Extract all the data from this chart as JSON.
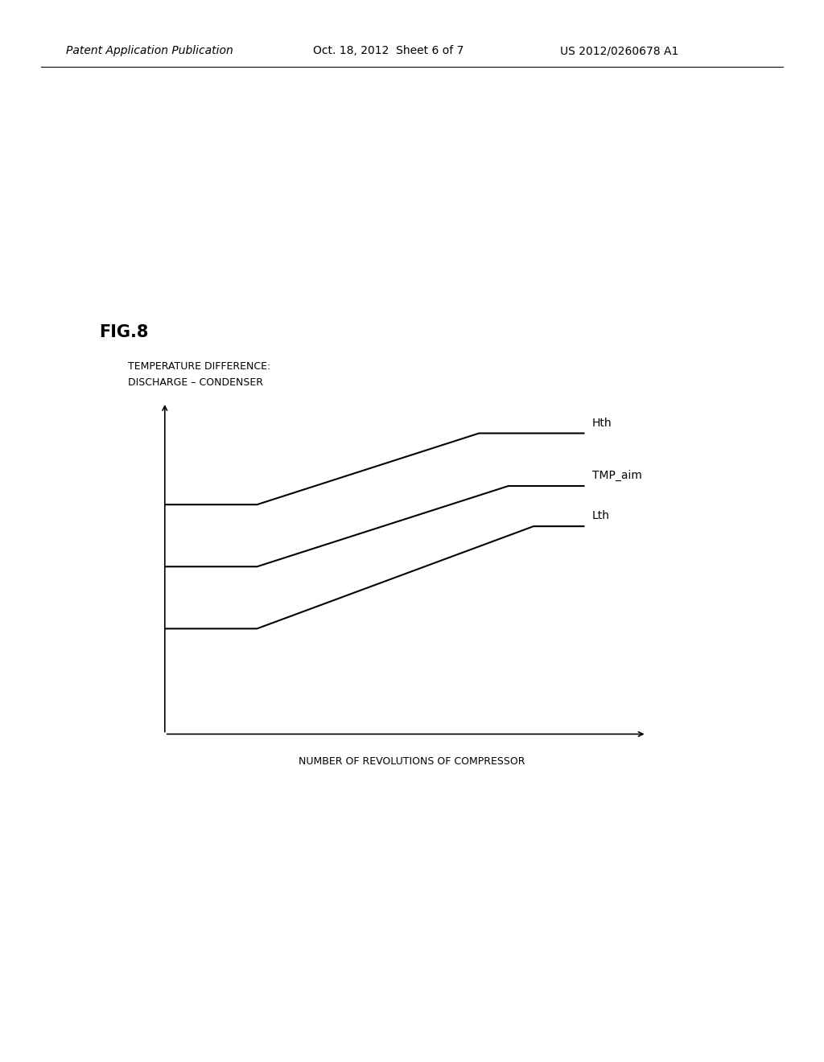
{
  "fig_label": "FIG.8",
  "header_left": "Patent Application Publication",
  "header_center": "Oct. 18, 2012  Sheet 6 of 7",
  "header_right": "US 2012/0260678 A1",
  "ylabel_line1": "TEMPERATURE DIFFERENCE:",
  "ylabel_line2": "DISCHARGE – CONDENSER",
  "xlabel": "NUMBER OF REVOLUTIONS OF COMPRESSOR",
  "lines": [
    {
      "label": "Hth",
      "x": [
        0.0,
        0.22,
        0.75,
        1.0
      ],
      "y": [
        0.72,
        0.72,
        0.95,
        0.95
      ]
    },
    {
      "label": "TMP_aim",
      "x": [
        0.0,
        0.22,
        0.82,
        1.0
      ],
      "y": [
        0.52,
        0.52,
        0.78,
        0.78
      ]
    },
    {
      "label": "Lth",
      "x": [
        0.0,
        0.22,
        0.88,
        1.0
      ],
      "y": [
        0.32,
        0.32,
        0.65,
        0.65
      ]
    }
  ],
  "line_color": "#000000",
  "line_width": 1.5,
  "background_color": "#ffffff",
  "fig_label_fontsize": 15,
  "header_fontsize": 10,
  "axis_label_fontsize": 9,
  "line_label_fontsize": 10
}
